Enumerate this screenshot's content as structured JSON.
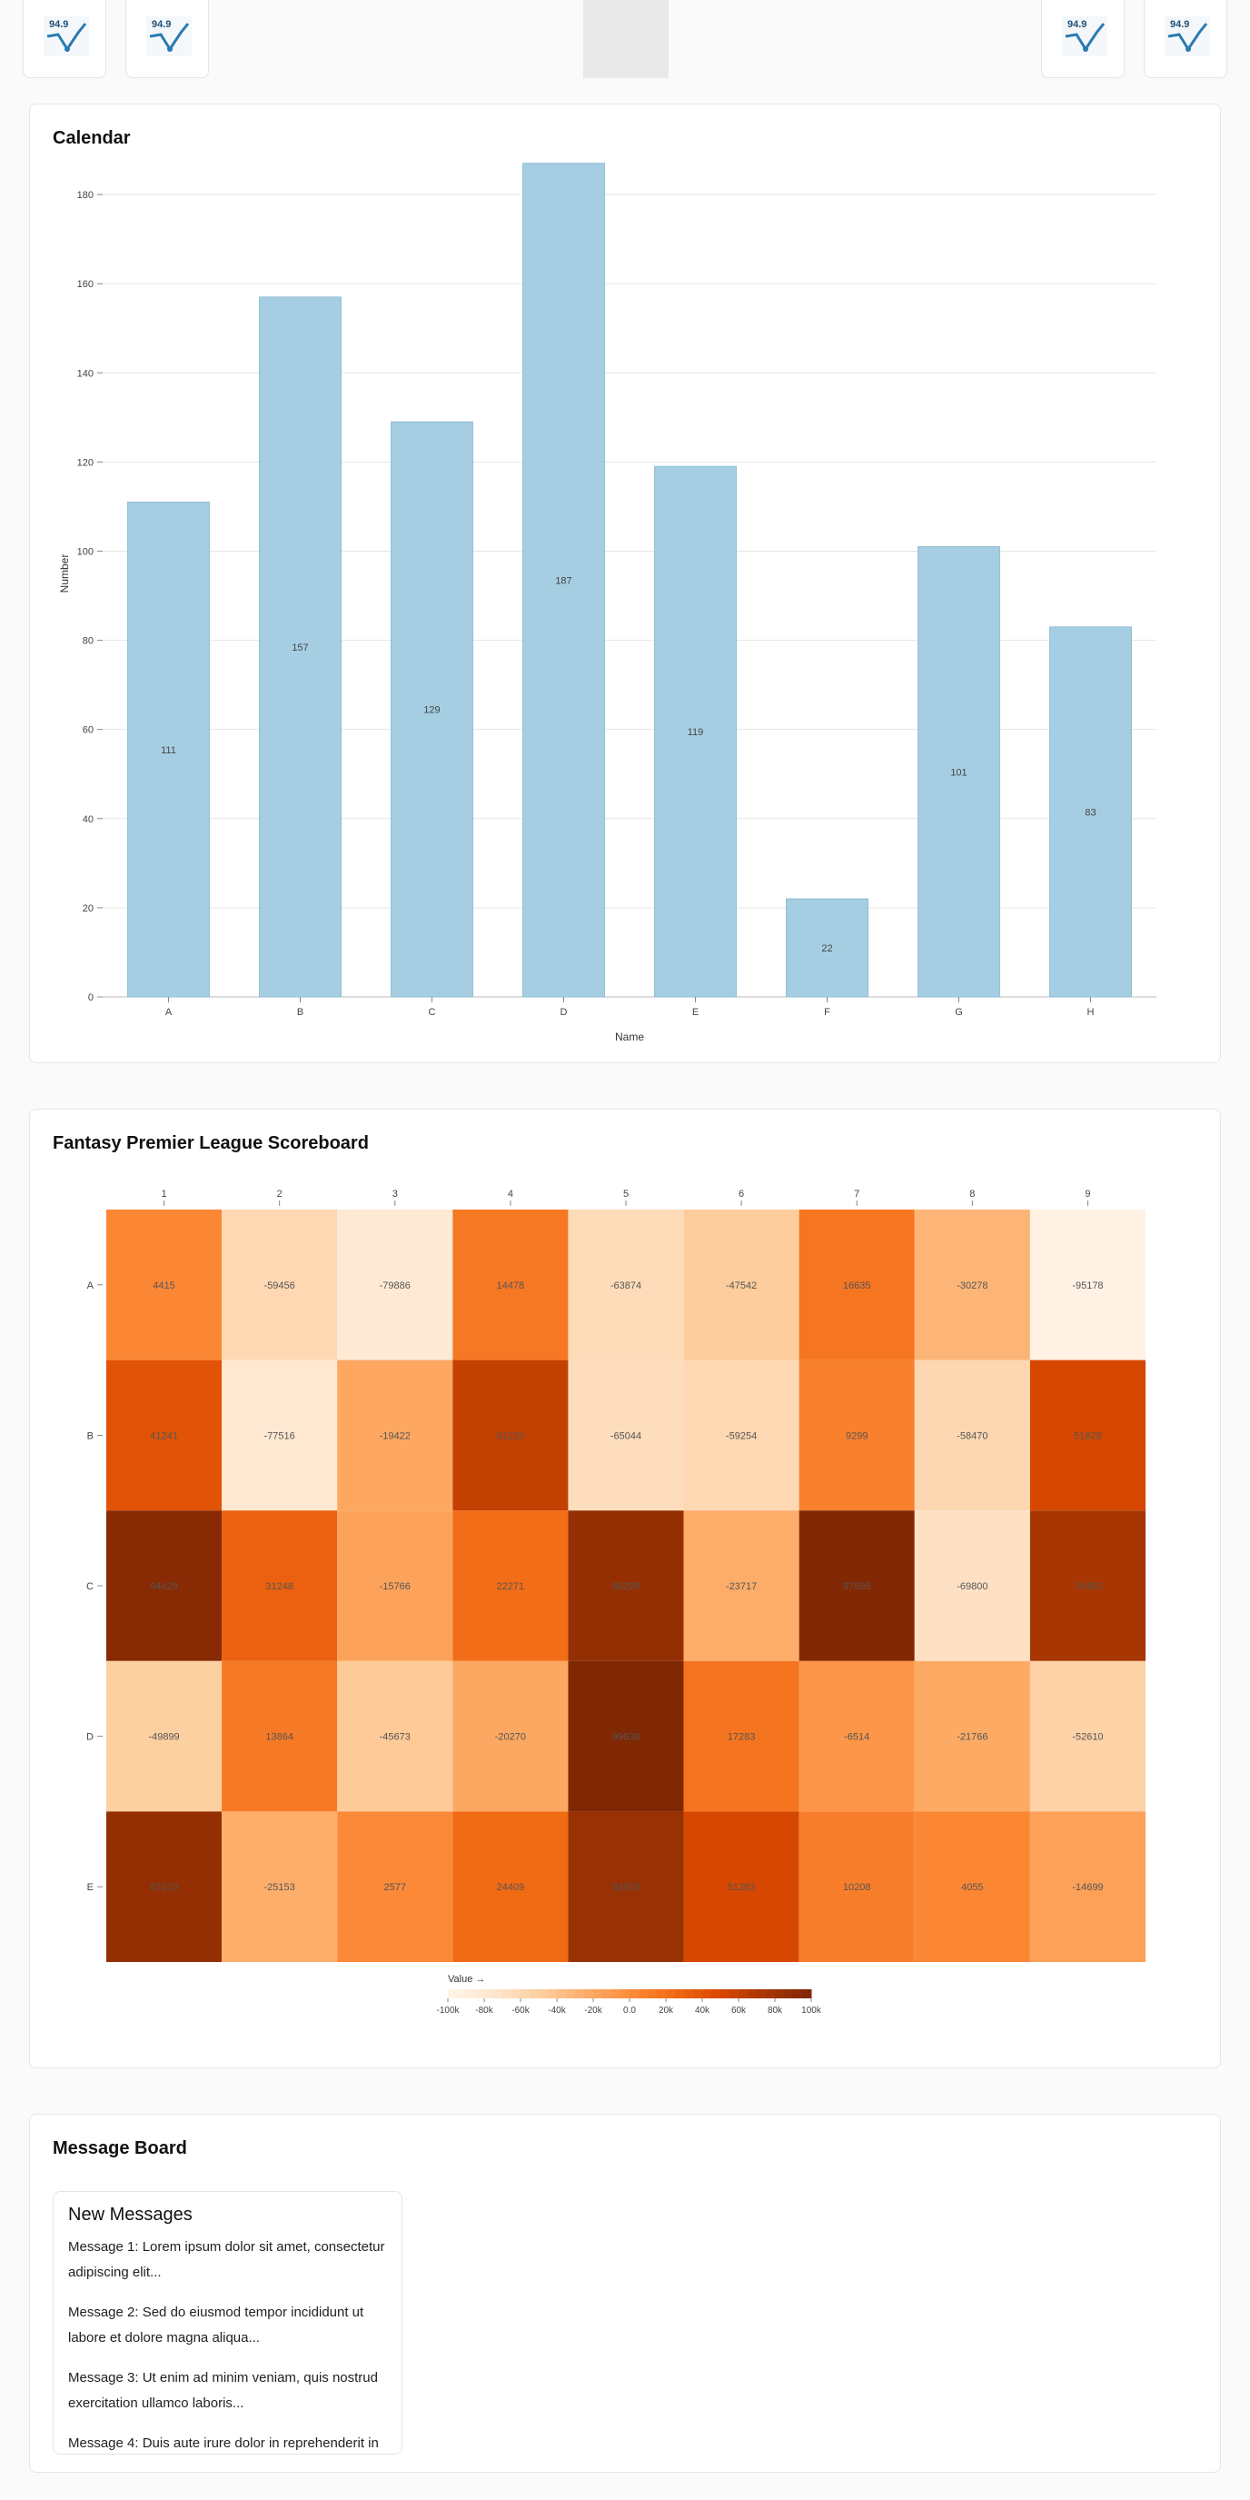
{
  "thumbnails": [
    {
      "name": "thumb-1",
      "label": "94.9"
    },
    {
      "name": "thumb-2",
      "label": "94.9"
    },
    {
      "name": "thumb-3",
      "label": "94.9"
    },
    {
      "name": "thumb-4",
      "label": "94.9"
    }
  ],
  "calendar": {
    "title": "Calendar",
    "chart_data": {
      "type": "bar",
      "categories": [
        "A",
        "B",
        "C",
        "D",
        "E",
        "F",
        "G",
        "H"
      ],
      "values": [
        111,
        157,
        129,
        187,
        119,
        22,
        101,
        83
      ],
      "xlabel": "Name",
      "ylabel": "Number",
      "ylim": [
        0,
        190
      ],
      "yticks": [
        0,
        20,
        40,
        60,
        80,
        100,
        120,
        140,
        160,
        180
      ],
      "grid": true,
      "bar_color": "#a6cee3"
    }
  },
  "scoreboard": {
    "title": "Fantasy Premier League Scoreboard",
    "chart_data": {
      "type": "heatmap",
      "columns": [
        "1",
        "2",
        "3",
        "4",
        "5",
        "6",
        "7",
        "8",
        "9"
      ],
      "rows": [
        "A",
        "B",
        "C",
        "D",
        "E"
      ],
      "values": [
        [
          4415,
          -59456,
          -79886,
          14478,
          -63874,
          -47542,
          16635,
          -30278,
          -95178
        ],
        [
          41241,
          -77516,
          -19422,
          61220,
          -65044,
          -59254,
          9299,
          -58470,
          51828
        ],
        [
          94428,
          31248,
          -15766,
          22271,
          86299,
          -23717,
          97595,
          -69800,
          74453
        ],
        [
          -49899,
          13864,
          -45673,
          -20270,
          99630,
          17283,
          -6514,
          -21766,
          -52610
        ],
        [
          87123,
          -25153,
          2577,
          24409,
          83923,
          51283,
          10208,
          4055,
          -14699
        ]
      ],
      "legend_title": "Value →",
      "legend_ticks": [
        "-100k",
        "-80k",
        "-60k",
        "-40k",
        "-20k",
        "0.0",
        "20k",
        "40k",
        "60k",
        "80k",
        "100k"
      ],
      "domain": [
        -100000,
        100000
      ],
      "colorscale": "oranges"
    }
  },
  "message_board": {
    "title": "Message Board",
    "heading": "New Messages",
    "messages": [
      "Message 1: Lorem ipsum dolor sit amet, consectetur adipiscing elit...",
      "Message 2: Sed do eiusmod tempor incididunt ut labore et dolore magna aliqua...",
      "Message 3: Ut enim ad minim veniam, quis nostrud exercitation ullamco laboris...",
      "Message 4: Duis aute irure dolor in reprehenderit in"
    ]
  }
}
